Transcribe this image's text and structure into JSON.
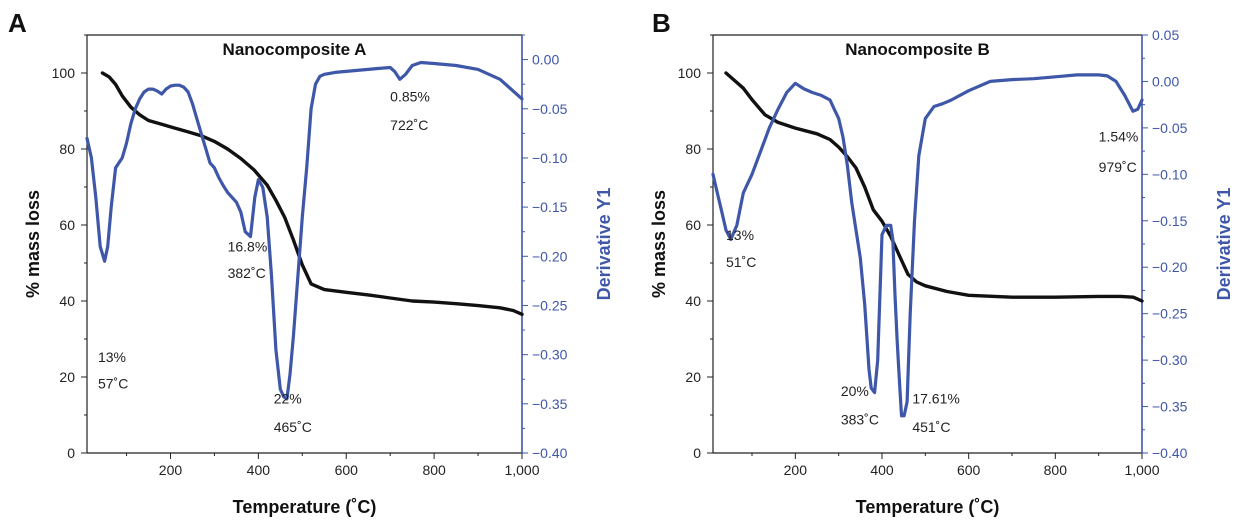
{
  "colors": {
    "mass": "#111111",
    "derivative": "#3f57a8",
    "axis": "#222222"
  },
  "chart_data": [
    {
      "type": "line",
      "panel_label": "A",
      "title": "Nanocomposite A",
      "xlabel": "Temperature (˚C)",
      "ylabel": "% mass loss",
      "y2label": "Derivative Y1",
      "xlim": [
        10,
        1000
      ],
      "ylim": [
        0,
        110
      ],
      "y2lim": [
        -0.4,
        0.025
      ],
      "x_ticks": [
        200,
        400,
        600,
        800,
        1000
      ],
      "x_tick_labels": [
        "200",
        "400",
        "600",
        "800",
        "1,000"
      ],
      "y_ticks": [
        0,
        20,
        40,
        60,
        80,
        100
      ],
      "y_tick_labels": [
        "0",
        "20",
        "40",
        "60",
        "80",
        "100"
      ],
      "y2_ticks": [
        -0.4,
        -0.35,
        -0.3,
        -0.25,
        -0.2,
        -0.15,
        -0.1,
        -0.05,
        0.0
      ],
      "y2_tick_labels": [
        "−0.40",
        "−0.35",
        "−0.30",
        "−0.25",
        "−0.20",
        "−0.15",
        "−0.10",
        "−0.05",
        "0.00"
      ],
      "series": [
        {
          "axis": "left",
          "color": "#111111",
          "x": [
            45,
            60,
            75,
            90,
            110,
            130,
            150,
            180,
            210,
            240,
            270,
            300,
            330,
            360,
            390,
            420,
            440,
            460,
            480,
            500,
            520,
            550,
            600,
            650,
            700,
            750,
            800,
            850,
            900,
            950,
            980,
            1000
          ],
          "y": [
            100,
            99,
            97,
            94,
            91,
            89,
            87.5,
            86.5,
            85.5,
            84.5,
            83.5,
            82,
            80,
            77.5,
            74.5,
            70.5,
            66.5,
            62,
            56,
            49.5,
            44.5,
            43,
            42.3,
            41.6,
            40.8,
            40,
            39.7,
            39.3,
            38.8,
            38.2,
            37.5,
            36.5
          ]
        },
        {
          "axis": "right",
          "color": "#3f57a8",
          "x": [
            10,
            20,
            30,
            40,
            50,
            57,
            65,
            75,
            90,
            100,
            110,
            120,
            130,
            140,
            150,
            160,
            170,
            180,
            190,
            200,
            210,
            220,
            230,
            240,
            250,
            260,
            270,
            280,
            290,
            300,
            310,
            320,
            330,
            340,
            350,
            360,
            370,
            382,
            392,
            400,
            410,
            420,
            430,
            440,
            450,
            458,
            465,
            472,
            480,
            490,
            500,
            510,
            520,
            530,
            540,
            550,
            575,
            600,
            625,
            650,
            675,
            700,
            710,
            722,
            735,
            750,
            770,
            800,
            850,
            900,
            950,
            1000
          ],
          "y": [
            -0.08,
            -0.1,
            -0.14,
            -0.19,
            -0.205,
            -0.19,
            -0.15,
            -0.11,
            -0.1,
            -0.085,
            -0.065,
            -0.05,
            -0.04,
            -0.033,
            -0.03,
            -0.03,
            -0.032,
            -0.035,
            -0.03,
            -0.027,
            -0.026,
            -0.026,
            -0.028,
            -0.033,
            -0.045,
            -0.06,
            -0.075,
            -0.09,
            -0.105,
            -0.11,
            -0.12,
            -0.128,
            -0.135,
            -0.14,
            -0.145,
            -0.155,
            -0.175,
            -0.18,
            -0.14,
            -0.122,
            -0.13,
            -0.16,
            -0.22,
            -0.295,
            -0.335,
            -0.343,
            -0.345,
            -0.32,
            -0.28,
            -0.22,
            -0.16,
            -0.11,
            -0.05,
            -0.025,
            -0.017,
            -0.015,
            -0.013,
            -0.012,
            -0.011,
            -0.01,
            -0.009,
            -0.008,
            -0.012,
            -0.02,
            -0.015,
            -0.006,
            -0.003,
            -0.004,
            -0.006,
            -0.01,
            -0.02,
            -0.04
          ]
        }
      ],
      "annotations": [
        {
          "text": "13%",
          "x": 35,
          "y": 24
        },
        {
          "text": "57˚C",
          "x": 35,
          "y": 17
        },
        {
          "text": "16.8%",
          "x": 330,
          "y": 53
        },
        {
          "text": "382˚C",
          "x": 330,
          "y": 46
        },
        {
          "text": "22%",
          "x": 435,
          "y": 13
        },
        {
          "text": "465˚C",
          "x": 435,
          "y": 5.5
        },
        {
          "text": "0.85%",
          "x": 700,
          "y": 92.5
        },
        {
          "text": "722˚C",
          "x": 700,
          "y": 85
        }
      ]
    },
    {
      "type": "line",
      "panel_label": "B",
      "title": "Nanocomposite B",
      "xlabel": "Temperature (˚C)",
      "ylabel": "% mass loss",
      "y2label": "Derivative Y1",
      "xlim": [
        10,
        1000
      ],
      "ylim": [
        0,
        110
      ],
      "y2lim": [
        -0.4,
        0.05
      ],
      "x_ticks": [
        200,
        400,
        600,
        800,
        1000
      ],
      "x_tick_labels": [
        "200",
        "400",
        "600",
        "800",
        "1,000"
      ],
      "y_ticks": [
        0,
        20,
        40,
        60,
        80,
        100
      ],
      "y_tick_labels": [
        "0",
        "20",
        "40",
        "60",
        "80",
        "100"
      ],
      "y2_ticks": [
        -0.4,
        -0.35,
        -0.3,
        -0.25,
        -0.2,
        -0.15,
        -0.1,
        -0.05,
        0.0,
        0.05
      ],
      "y2_tick_labels": [
        "−0.40",
        "−0.35",
        "−0.30",
        "−0.25",
        "−0.20",
        "−0.15",
        "−0.10",
        "−0.05",
        "0.00",
        "0.05"
      ],
      "series": [
        {
          "axis": "left",
          "color": "#111111",
          "x": [
            40,
            60,
            80,
            100,
            130,
            160,
            200,
            250,
            280,
            300,
            320,
            340,
            360,
            380,
            400,
            420,
            440,
            460,
            480,
            500,
            550,
            600,
            700,
            800,
            900,
            950,
            980,
            1000
          ],
          "y": [
            100,
            98,
            96,
            93,
            89,
            87,
            85.5,
            84,
            82.5,
            80.5,
            78,
            75,
            70,
            64,
            61,
            57,
            52,
            47,
            45,
            44,
            42.5,
            41.5,
            41,
            41,
            41.2,
            41.2,
            41,
            40
          ]
        },
        {
          "axis": "right",
          "color": "#3f57a8",
          "x": [
            10,
            20,
            30,
            40,
            51,
            65,
            80,
            100,
            120,
            140,
            160,
            180,
            200,
            210,
            220,
            240,
            260,
            280,
            290,
            300,
            310,
            320,
            330,
            340,
            350,
            360,
            370,
            375,
            383,
            390,
            400,
            410,
            420,
            425,
            430,
            435,
            440,
            445,
            451,
            458,
            465,
            475,
            485,
            500,
            520,
            540,
            560,
            600,
            650,
            700,
            750,
            800,
            850,
            900,
            920,
            940,
            960,
            979,
            990,
            1000
          ],
          "y": [
            -0.1,
            -0.12,
            -0.14,
            -0.16,
            -0.17,
            -0.155,
            -0.12,
            -0.1,
            -0.075,
            -0.05,
            -0.03,
            -0.012,
            -0.002,
            -0.005,
            -0.008,
            -0.012,
            -0.015,
            -0.02,
            -0.03,
            -0.04,
            -0.06,
            -0.09,
            -0.13,
            -0.16,
            -0.19,
            -0.24,
            -0.31,
            -0.33,
            -0.335,
            -0.3,
            -0.165,
            -0.155,
            -0.155,
            -0.17,
            -0.23,
            -0.28,
            -0.32,
            -0.36,
            -0.36,
            -0.345,
            -0.25,
            -0.15,
            -0.08,
            -0.04,
            -0.027,
            -0.024,
            -0.02,
            -0.01,
            0.0,
            0.002,
            0.003,
            0.005,
            0.007,
            0.007,
            0.006,
            0.0,
            -0.015,
            -0.032,
            -0.03,
            -0.02
          ]
        }
      ],
      "annotations": [
        {
          "text": "13%",
          "x": 40,
          "y": 56
        },
        {
          "text": "51˚C",
          "x": 40,
          "y": 49
        },
        {
          "text": "20%",
          "x": 305,
          "y": 15
        },
        {
          "text": "383˚C",
          "x": 305,
          "y": 7.5
        },
        {
          "text": "17.61%",
          "x": 470,
          "y": 13
        },
        {
          "text": "451˚C",
          "x": 470,
          "y": 5.5
        },
        {
          "text": "1.54%",
          "x": 900,
          "y": 82
        },
        {
          "text": "979˚C",
          "x": 900,
          "y": 74
        }
      ]
    }
  ]
}
